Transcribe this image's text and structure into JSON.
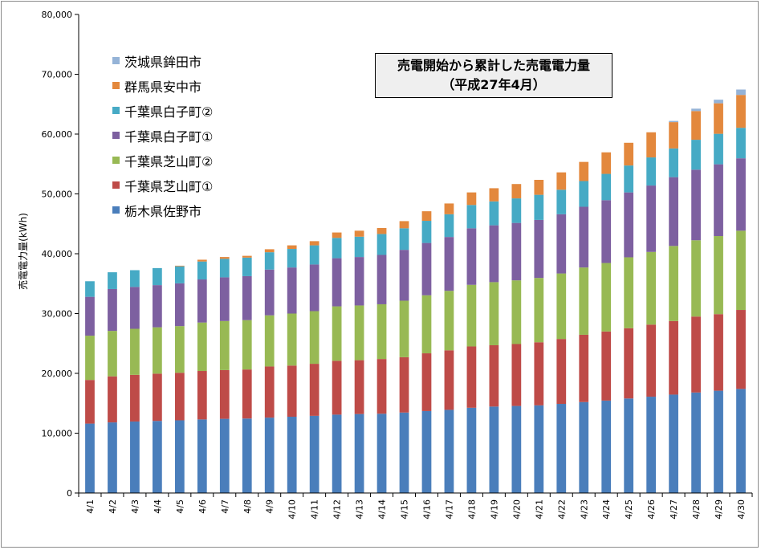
{
  "chart_data": {
    "type": "bar",
    "stacked": true,
    "title": "売電開始から累計した売電電力量",
    "subtitle": "（平成27年4月）",
    "xlabel": "",
    "ylabel": "売電電力量(kWh)",
    "ylim": [
      0,
      80000
    ],
    "yticks": [
      "0",
      "10,000",
      "20,000",
      "30,000",
      "40,000",
      "50,000",
      "60,000",
      "70,000",
      "80,000"
    ],
    "grid": false,
    "legend_position": "top-left",
    "categories": [
      "4/1",
      "4/2",
      "4/3",
      "4/4",
      "4/5",
      "4/6",
      "4/7",
      "4/8",
      "4/9",
      "4/10",
      "4/11",
      "4/12",
      "4/13",
      "4/14",
      "4/15",
      "4/16",
      "4/17",
      "4/18",
      "4/19",
      "4/20",
      "4/21",
      "4/22",
      "4/23",
      "4/24",
      "4/25",
      "4/26",
      "4/27",
      "4/28",
      "4/29",
      "4/30"
    ],
    "series": [
      {
        "name": "栃木県佐野市",
        "color": "#4a7ebb",
        "values": [
          11600,
          11800,
          11950,
          12050,
          12150,
          12300,
          12400,
          12450,
          12600,
          12750,
          12900,
          13100,
          13200,
          13250,
          13450,
          13700,
          13900,
          14250,
          14450,
          14550,
          14650,
          14900,
          15200,
          15450,
          15800,
          16100,
          16450,
          16800,
          17100,
          17400
        ]
      },
      {
        "name": "千葉県芝山町①",
        "color": "#be4b48",
        "values": [
          7300,
          7700,
          7800,
          7900,
          7950,
          8100,
          8150,
          8200,
          8550,
          8550,
          8700,
          9000,
          9000,
          9150,
          9250,
          9650,
          9950,
          10250,
          10250,
          10350,
          10550,
          10850,
          11250,
          11550,
          11750,
          12050,
          12300,
          12700,
          12800,
          13200
        ]
      },
      {
        "name": "千葉県芝山町②",
        "color": "#98b954",
        "values": [
          7400,
          7600,
          7700,
          7750,
          7800,
          8100,
          8200,
          8250,
          8550,
          8700,
          8800,
          9100,
          9150,
          9150,
          9450,
          9700,
          9950,
          10300,
          10550,
          10650,
          10750,
          10950,
          11250,
          11450,
          11850,
          12150,
          12550,
          12750,
          13050,
          13250
        ]
      },
      {
        "name": "千葉県白子町①",
        "color": "#7d60a0",
        "values": [
          6500,
          7000,
          7000,
          7050,
          7150,
          7200,
          7300,
          7350,
          7650,
          7700,
          7800,
          8050,
          8100,
          8250,
          8500,
          8750,
          9000,
          9450,
          9500,
          9600,
          9700,
          9900,
          10150,
          10500,
          10850,
          11100,
          11500,
          11800,
          12000,
          12100
        ]
      },
      {
        "name": "千葉県白子町②",
        "color": "#46aac5",
        "values": [
          2600,
          2800,
          2800,
          2850,
          2850,
          3000,
          3100,
          3100,
          2900,
          3100,
          3200,
          3400,
          3400,
          3500,
          3600,
          3700,
          3800,
          3900,
          4000,
          4100,
          4200,
          4100,
          4300,
          4400,
          4500,
          4700,
          4800,
          5000,
          5100,
          5100
        ]
      },
      {
        "name": "群馬県安中市",
        "color": "#e3883d",
        "values": [
          0,
          0,
          0,
          0,
          100,
          300,
          300,
          300,
          500,
          600,
          700,
          900,
          1000,
          1000,
          1200,
          1600,
          1800,
          2100,
          2200,
          2400,
          2500,
          2900,
          3200,
          3600,
          3800,
          4200,
          4400,
          4800,
          5100,
          5500
        ]
      },
      {
        "name": "茨城県鉾田市",
        "color": "#95b3d7",
        "values": [
          0,
          0,
          0,
          0,
          0,
          0,
          0,
          0,
          0,
          0,
          0,
          0,
          0,
          0,
          0,
          0,
          0,
          0,
          0,
          0,
          0,
          0,
          0,
          0,
          0,
          0,
          200,
          400,
          600,
          900
        ]
      }
    ]
  }
}
